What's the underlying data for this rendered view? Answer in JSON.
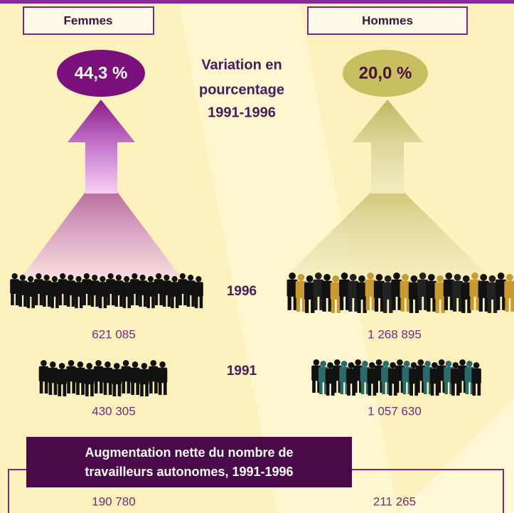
{
  "women": {
    "label": "Femmes",
    "change": "44,3 %",
    "count_1996": "621 085",
    "count_1991": "430 305",
    "net": "190 780"
  },
  "men": {
    "label": "Hommes",
    "change": "20,0 %",
    "count_1996": "1 268 895",
    "count_1991": "1 057 630",
    "net": "211 265"
  },
  "center": {
    "title_lines": [
      "Variation en",
      "pourcentage",
      "1991-1996"
    ],
    "year_1996": "1996",
    "year_1991": "1991"
  },
  "net_title_lines": [
    "Augmentation nette du nombre de",
    "travailleurs autonomes, 1991-1996"
  ]
}
